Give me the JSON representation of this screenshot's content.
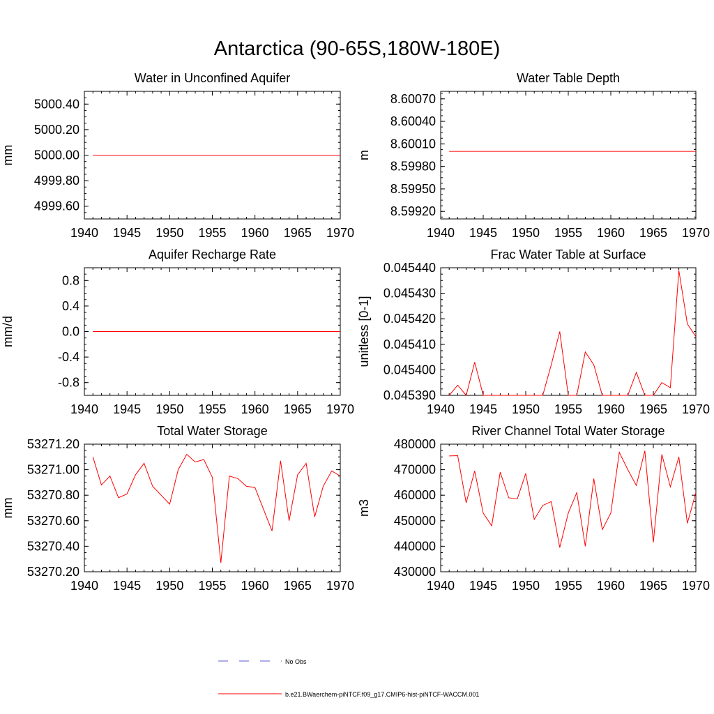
{
  "page": {
    "title": "Antarctica (90-65S,180W-180E)"
  },
  "legend": {
    "entries": [
      {
        "label": "No Obs",
        "color": "#5a5ad0",
        "style": "dashed"
      },
      {
        "label": "b.e21.BWaerchem-piNTCF.f09_g17.CMIP6-hist-piNTCF-WACCM.001",
        "color": "#ff0000",
        "style": "solid"
      }
    ]
  },
  "chart_data": [
    {
      "type": "line",
      "title": "Water in Unconfined Aquifer",
      "ylabel": "mm",
      "xlim": [
        1940,
        1970
      ],
      "ylim": [
        4999.5,
        5000.5
      ],
      "xticks": [
        1940,
        1945,
        1950,
        1955,
        1960,
        1965,
        1970
      ],
      "yticks": [
        4999.6,
        4999.8,
        5000.0,
        5000.2,
        5000.4
      ],
      "ytick_labels": [
        "4999.60",
        "4999.80",
        "5000.00",
        "5000.20",
        "5000.40"
      ],
      "series": [
        {
          "color": "#ff0000",
          "x": [
            1941,
            1942,
            1943,
            1944,
            1945,
            1946,
            1947,
            1948,
            1949,
            1950,
            1951,
            1952,
            1953,
            1954,
            1955,
            1956,
            1957,
            1958,
            1959,
            1960,
            1961,
            1962,
            1963,
            1964,
            1965,
            1966,
            1967,
            1968,
            1969,
            1970
          ],
          "y": [
            5000,
            5000,
            5000,
            5000,
            5000,
            5000,
            5000,
            5000,
            5000,
            5000,
            5000,
            5000,
            5000,
            5000,
            5000,
            5000,
            5000,
            5000,
            5000,
            5000,
            5000,
            5000,
            5000,
            5000,
            5000,
            5000,
            5000,
            5000,
            5000,
            5000
          ]
        }
      ]
    },
    {
      "type": "line",
      "title": "Water Table Depth",
      "ylabel": "m",
      "xlim": [
        1940,
        1970
      ],
      "ylim": [
        8.5991,
        8.6008
      ],
      "xticks": [
        1940,
        1945,
        1950,
        1955,
        1960,
        1965,
        1970
      ],
      "yticks": [
        8.5992,
        8.5995,
        8.5998,
        8.6001,
        8.6004,
        8.6007
      ],
      "ytick_labels": [
        "8.59920",
        "8.59950",
        "8.59980",
        "8.60010",
        "8.60040",
        "8.60070"
      ],
      "series": [
        {
          "color": "#ff0000",
          "x": [
            1941,
            1942,
            1943,
            1944,
            1945,
            1946,
            1947,
            1948,
            1949,
            1950,
            1951,
            1952,
            1953,
            1954,
            1955,
            1956,
            1957,
            1958,
            1959,
            1960,
            1961,
            1962,
            1963,
            1964,
            1965,
            1966,
            1967,
            1968,
            1969,
            1970
          ],
          "y": [
            8.6,
            8.6,
            8.6,
            8.6,
            8.6,
            8.6,
            8.6,
            8.6,
            8.6,
            8.6,
            8.6,
            8.6,
            8.6,
            8.6,
            8.6,
            8.6,
            8.6,
            8.6,
            8.6,
            8.6,
            8.6,
            8.6,
            8.6,
            8.6,
            8.6,
            8.6,
            8.6,
            8.6,
            8.6,
            8.6
          ]
        }
      ]
    },
    {
      "type": "line",
      "title": "Aquifer Recharge Rate",
      "ylabel": "mm/d",
      "xlim": [
        1940,
        1970
      ],
      "ylim": [
        -1.0,
        1.0
      ],
      "xticks": [
        1940,
        1945,
        1950,
        1955,
        1960,
        1965,
        1970
      ],
      "yticks": [
        -0.8,
        -0.4,
        0.0,
        0.4,
        0.8
      ],
      "ytick_labels": [
        "-0.8",
        "-0.4",
        "0.0",
        "0.4",
        "0.8"
      ],
      "series": [
        {
          "color": "#ff0000",
          "x": [
            1941,
            1942,
            1943,
            1944,
            1945,
            1946,
            1947,
            1948,
            1949,
            1950,
            1951,
            1952,
            1953,
            1954,
            1955,
            1956,
            1957,
            1958,
            1959,
            1960,
            1961,
            1962,
            1963,
            1964,
            1965,
            1966,
            1967,
            1968,
            1969,
            1970
          ],
          "y": [
            0,
            0,
            0,
            0,
            0,
            0,
            0,
            0,
            0,
            0,
            0,
            0,
            0,
            0,
            0,
            0,
            0,
            0,
            0,
            0,
            0,
            0,
            0,
            0,
            0,
            0,
            0,
            0,
            0,
            0
          ]
        }
      ]
    },
    {
      "type": "line",
      "title": "Frac Water Table at Surface",
      "ylabel": "unitless [0-1]",
      "xlim": [
        1940,
        1970
      ],
      "ylim": [
        0.04539,
        0.04544
      ],
      "xticks": [
        1940,
        1945,
        1950,
        1955,
        1960,
        1965,
        1970
      ],
      "yticks": [
        0.04539,
        0.0454,
        0.04541,
        0.04542,
        0.04543,
        0.04544
      ],
      "ytick_labels": [
        "0.045390",
        "0.045400",
        "0.045410",
        "0.045420",
        "0.045430",
        "0.045440"
      ],
      "series": [
        {
          "color": "#ff0000",
          "x": [
            1941,
            1942,
            1943,
            1944,
            1945,
            1946,
            1947,
            1948,
            1949,
            1950,
            1951,
            1952,
            1953,
            1954,
            1955,
            1956,
            1957,
            1958,
            1959,
            1960,
            1961,
            1962,
            1963,
            1964,
            1965,
            1966,
            1967,
            1968,
            1969,
            1970
          ],
          "y": [
            0.04539,
            0.045394,
            0.04539,
            0.045403,
            0.04539,
            0.04539,
            0.04539,
            0.04539,
            0.04539,
            0.04539,
            0.04539,
            0.04539,
            0.045402,
            0.045415,
            0.04539,
            0.04539,
            0.045407,
            0.045402,
            0.04539,
            0.04539,
            0.04539,
            0.04539,
            0.045399,
            0.04539,
            0.04539,
            0.045395,
            0.045393,
            0.045439,
            0.045418,
            0.045413
          ]
        }
      ]
    },
    {
      "type": "line",
      "title": "Total Water Storage",
      "ylabel": "mm",
      "xlim": [
        1940,
        1970
      ],
      "ylim": [
        53270.2,
        53271.2
      ],
      "xticks": [
        1940,
        1945,
        1950,
        1955,
        1960,
        1965,
        1970
      ],
      "yticks": [
        53270.2,
        53270.4,
        53270.6,
        53270.8,
        53271.0,
        53271.2
      ],
      "ytick_labels": [
        "53270.20",
        "53270.40",
        "53270.60",
        "53270.80",
        "53271.00",
        "53271.20"
      ],
      "series": [
        {
          "color": "#ff0000",
          "x": [
            1941,
            1942,
            1943,
            1944,
            1945,
            1946,
            1947,
            1948,
            1949,
            1950,
            1951,
            1952,
            1953,
            1954,
            1955,
            1956,
            1957,
            1958,
            1959,
            1960,
            1961,
            1962,
            1963,
            1964,
            1965,
            1966,
            1967,
            1968,
            1969,
            1970
          ],
          "y": [
            53271.1,
            53270.88,
            53270.95,
            53270.78,
            53270.81,
            53270.96,
            53271.05,
            53270.87,
            53270.8,
            53270.73,
            53271.0,
            53271.12,
            53271.06,
            53271.08,
            53270.94,
            53270.27,
            53270.95,
            53270.93,
            53270.87,
            53270.86,
            53270.69,
            53270.52,
            53271.07,
            53270.6,
            53270.96,
            53271.05,
            53270.63,
            53270.87,
            53270.99,
            53270.95
          ]
        }
      ]
    },
    {
      "type": "line",
      "title": "River Channel Total Water Storage",
      "ylabel": "m3",
      "xlim": [
        1940,
        1970
      ],
      "ylim": [
        430000,
        480000
      ],
      "xticks": [
        1940,
        1945,
        1950,
        1955,
        1960,
        1965,
        1970
      ],
      "yticks": [
        430000,
        440000,
        450000,
        460000,
        470000,
        480000
      ],
      "ytick_labels": [
        "430000",
        "440000",
        "450000",
        "460000",
        "470000",
        "480000"
      ],
      "series": [
        {
          "color": "#ff0000",
          "x": [
            1941,
            1942,
            1943,
            1944,
            1945,
            1946,
            1947,
            1948,
            1949,
            1950,
            1951,
            1952,
            1953,
            1954,
            1955,
            1956,
            1957,
            1958,
            1959,
            1960,
            1961,
            1962,
            1963,
            1964,
            1965,
            1966,
            1967,
            1968,
            1969,
            1970
          ],
          "y": [
            475400,
            475500,
            457000,
            469500,
            453000,
            448000,
            469000,
            459000,
            458500,
            468500,
            450500,
            456000,
            457500,
            439500,
            453000,
            461000,
            440000,
            466500,
            446500,
            453000,
            476800,
            470000,
            463800,
            477400,
            441500,
            476000,
            463300,
            475000,
            449000,
            461000
          ]
        }
      ]
    }
  ]
}
